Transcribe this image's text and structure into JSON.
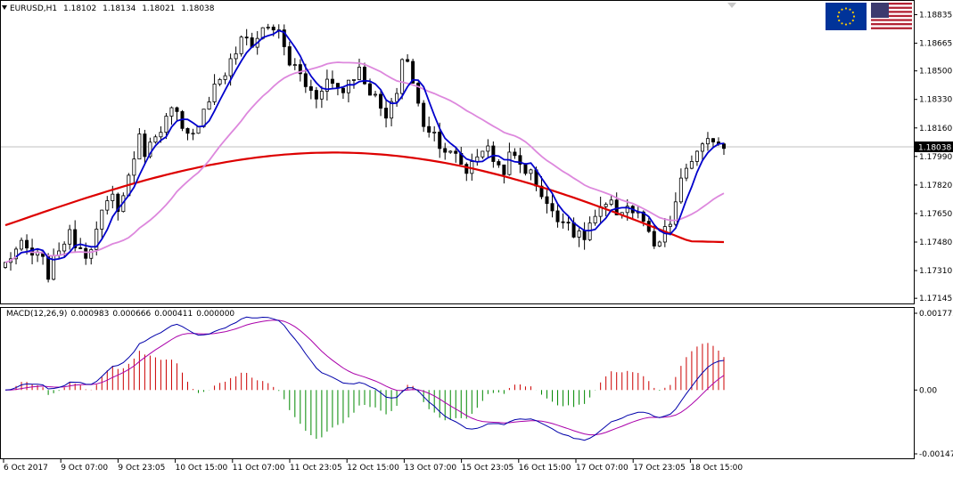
{
  "header": {
    "symbol": "EURUSD,H1",
    "open": "1.18102",
    "high": "1.18134",
    "low": "1.18021",
    "close": "1.18038"
  },
  "macd_header": {
    "name": "MACD(12,26,9)",
    "main": "0.000983",
    "signal": "0.000666",
    "hist": "0.000411",
    "extra": "0.000000"
  },
  "current_price_label": "1.18038",
  "flags": [
    "eu-flag-icon",
    "us-flag-icon"
  ],
  "colors": {
    "candle": "#000000",
    "fast_ma": "#0000cc",
    "mid_ma": "#dd88dd",
    "slow_ma": "#dd0000",
    "macd_main": "#0000aa",
    "macd_signal": "#aa00aa",
    "hist_up": "#cc0000",
    "hist_down": "#008800"
  },
  "chart_data": [
    {
      "type": "candlestick",
      "symbol": "EURUSD",
      "timeframe": "H1",
      "y_ticks": [
        "1.18835",
        "1.18665",
        "1.18500",
        "1.18330",
        "1.18160",
        "1.17990",
        "1.17820",
        "1.17650",
        "1.17480",
        "1.17310",
        "1.17145"
      ],
      "ylim": [
        1.1713,
        1.1888
      ],
      "x_ticks": [
        "6 Oct 2017",
        "9 Oct 07:00",
        "9 Oct 23:05",
        "10 Oct 15:00",
        "11 Oct 07:00",
        "11 Oct 23:05",
        "12 Oct 15:00",
        "13 Oct 07:00",
        "15 Oct 23:05",
        "16 Oct 15:00",
        "17 Oct 07:00",
        "17 Oct 23:05",
        "18 Oct 15:00"
      ],
      "close_path": [
        1.1735,
        1.1743,
        1.1745,
        1.174,
        1.1738,
        1.1728,
        1.1745,
        1.1752,
        1.1748,
        1.1742,
        1.175,
        1.1765,
        1.1775,
        1.1768,
        1.179,
        1.181,
        1.18,
        1.1815,
        1.182,
        1.1828,
        1.1812,
        1.1808,
        1.1825,
        1.1835,
        1.1845,
        1.185,
        1.1862,
        1.187,
        1.1866,
        1.1875,
        1.1878,
        1.187,
        1.1855,
        1.185,
        1.184,
        1.1835,
        1.1845,
        1.1842,
        1.1838,
        1.1848,
        1.185,
        1.184,
        1.183,
        1.182,
        1.1835,
        1.1865,
        1.184,
        1.182,
        1.1815,
        1.1808,
        1.18,
        1.1798,
        1.179,
        1.18,
        1.1805,
        1.1798,
        1.179,
        1.18,
        1.1795,
        1.179,
        1.1782,
        1.1772,
        1.176,
        1.1765,
        1.1755,
        1.1748,
        1.176,
        1.1765,
        1.177,
        1.1766,
        1.177,
        1.1765,
        1.176,
        1.1742,
        1.175,
        1.176,
        1.178,
        1.1796,
        1.18,
        1.1805,
        1.1812,
        1.1804
      ],
      "last_close": 1.18038,
      "series": [
        {
          "name": "EURUSD,H1",
          "kind": "candles"
        },
        {
          "kind": "ma-fast",
          "color": "#0000cc"
        },
        {
          "kind": "ma-mid",
          "color": "#dd88dd"
        },
        {
          "kind": "ma-slow",
          "color": "#dd0000"
        }
      ]
    },
    {
      "type": "macd",
      "title": "MACD(12,26,9)",
      "y_ticks": [
        "0.001772",
        "0.00",
        "-0.001473"
      ],
      "ylim": [
        -0.001473,
        0.001772
      ],
      "last_values": {
        "main": 0.000983,
        "signal": 0.000666,
        "hist": 0.000411
      }
    }
  ]
}
